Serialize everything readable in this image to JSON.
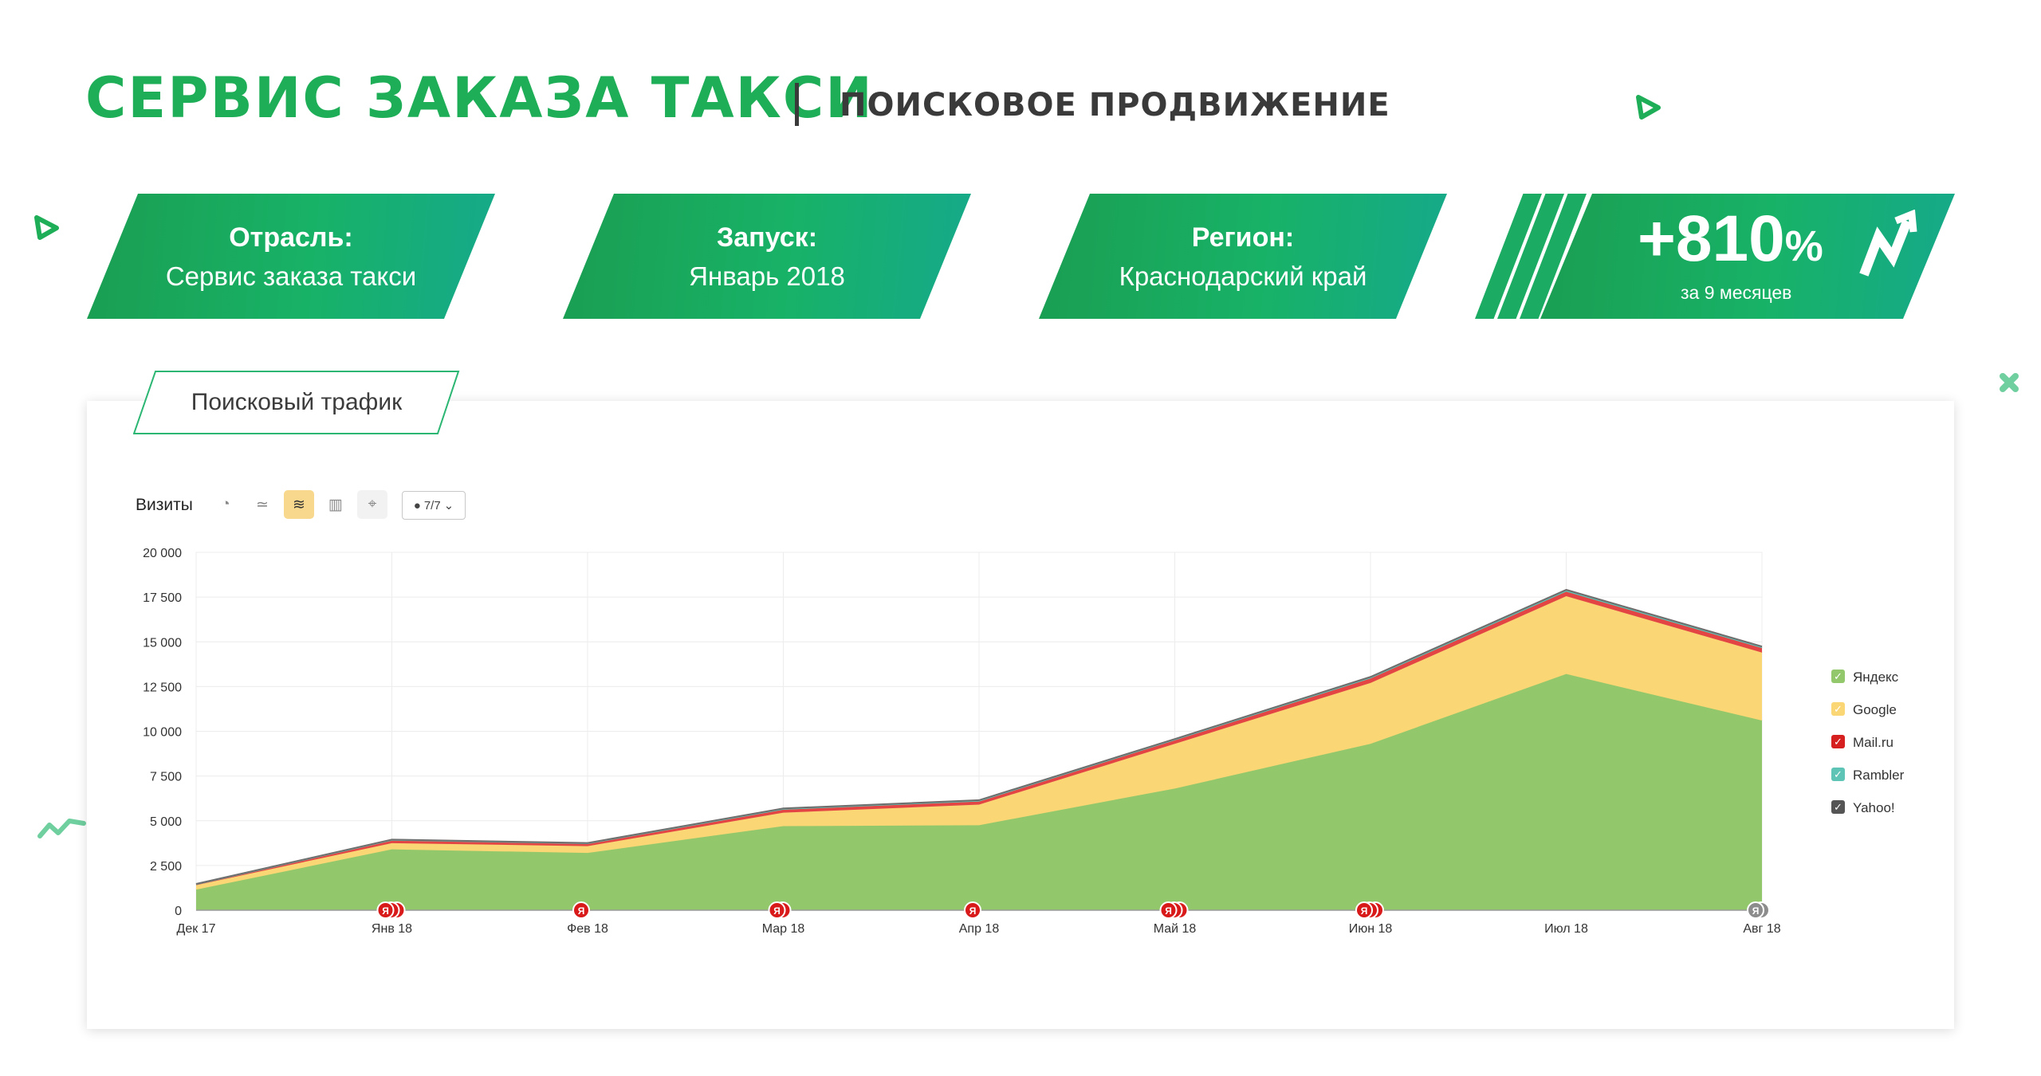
{
  "header": {
    "title": "СЕРВИС ЗАКАЗА ТАКСИ",
    "subtitle": "ПОИСКОВОЕ ПРОДВИЖЕНИЕ"
  },
  "cards": [
    {
      "label": "Отрасль:",
      "value": "Сервис заказа такси"
    },
    {
      "label": "Запуск:",
      "value": "Январь 2018"
    },
    {
      "label": "Регион:",
      "value": "Краснодарский край"
    }
  ],
  "result": {
    "value": "+810",
    "unit": "%",
    "note": "за 9 месяцев",
    "icon": "growth-arrow-icon"
  },
  "panel": {
    "tab_label": "Поисковый трафик",
    "metric_label": "Визиты",
    "toolbar_icons": [
      "pie-chart-icon",
      "line-chart-icon",
      "stacked-area-icon",
      "bar-chart-icon",
      "map-pin-icon"
    ],
    "active_view": "stacked-area-icon",
    "annotations_select": "7/7"
  },
  "colors": {
    "brand_green": "#1fae58",
    "yandex": "#92c86b",
    "google": "#fad675",
    "mailru": "#e34545",
    "rambler": "#5ec4b6",
    "yahoo": "#6e6e6e"
  },
  "chart_data": {
    "type": "area",
    "stacked": true,
    "title": "",
    "xlabel": "",
    "ylabel": "",
    "categories": [
      "Дек 17",
      "Янв 18",
      "Фев 18",
      "Мар 18",
      "Апр 18",
      "Май 18",
      "Июн 18",
      "Июл 18",
      "Авг 18"
    ],
    "y_ticks": [
      "0",
      "2 500",
      "5 000",
      "7 500",
      "10 000",
      "12 500",
      "15 000",
      "17 500",
      "20 000"
    ],
    "ylim": [
      0,
      20000
    ],
    "grid": true,
    "legend_position": "right",
    "series": [
      {
        "name": "Яндекс",
        "color": "#92c86b",
        "values": [
          1150,
          3400,
          3200,
          4700,
          4750,
          6800,
          9300,
          13200,
          10600
        ]
      },
      {
        "name": "Google",
        "color": "#fad675",
        "values": [
          250,
          350,
          380,
          750,
          1150,
          2500,
          3400,
          4350,
          3800
        ]
      },
      {
        "name": "Mail.ru",
        "color": "#e34545",
        "values": [
          50,
          150,
          130,
          170,
          180,
          200,
          250,
          250,
          250
        ]
      },
      {
        "name": "Rambler",
        "color": "#5ec4b6",
        "values": [
          10,
          30,
          30,
          40,
          40,
          40,
          50,
          60,
          50
        ]
      },
      {
        "name": "Yahoo!",
        "color": "#6e6e6e",
        "values": [
          10,
          20,
          20,
          30,
          30,
          30,
          40,
          50,
          40
        ]
      }
    ],
    "event_markers": [
      {
        "category": "Янв 18",
        "count": 3,
        "label": "Я"
      },
      {
        "category": "Фев 18",
        "count": 1,
        "label": "Я"
      },
      {
        "category": "Мар 18",
        "count": 2,
        "label": "Я"
      },
      {
        "category": "Апр 18",
        "count": 1,
        "label": "Я"
      },
      {
        "category": "Май 18",
        "count": 3,
        "label": "Я"
      },
      {
        "category": "Июн 18",
        "count": 3,
        "label": "Я"
      },
      {
        "category": "Авг 18",
        "count": 2,
        "label": "Я",
        "muted": true
      }
    ]
  }
}
